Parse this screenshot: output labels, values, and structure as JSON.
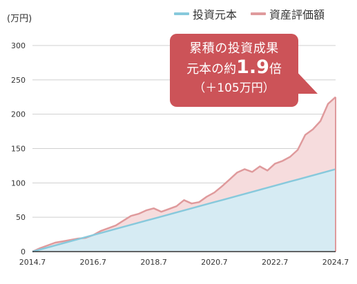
{
  "chart_data": {
    "type": "area",
    "unit_label": "(万円)",
    "x": [
      "2014.7",
      "2014.10",
      "2015.1",
      "2015.4",
      "2015.7",
      "2015.10",
      "2016.1",
      "2016.4",
      "2016.7",
      "2016.10",
      "2017.1",
      "2017.4",
      "2017.7",
      "2017.10",
      "2018.1",
      "2018.4",
      "2018.7",
      "2018.10",
      "2019.1",
      "2019.4",
      "2019.7",
      "2019.10",
      "2020.1",
      "2020.4",
      "2020.7",
      "2020.10",
      "2021.1",
      "2021.4",
      "2021.7",
      "2021.10",
      "2022.1",
      "2022.4",
      "2022.7",
      "2022.10",
      "2023.1",
      "2023.4",
      "2023.7",
      "2023.10",
      "2024.1",
      "2024.4",
      "2024.7"
    ],
    "xticks": [
      "2014.7",
      "2016.7",
      "2018.7",
      "2020.7",
      "2022.7",
      "2024.7"
    ],
    "ylim": [
      0,
      300
    ],
    "yticks": [
      0,
      50,
      100,
      150,
      200,
      250,
      300
    ],
    "grid": true,
    "legend_position": "top-right",
    "series": [
      {
        "name": "投資元本",
        "color": "#87c9dc",
        "fill": "#d6ebf3",
        "values": [
          0,
          3,
          6,
          9,
          12,
          15,
          18,
          21,
          24,
          27,
          30,
          33,
          36,
          39,
          42,
          45,
          48,
          51,
          54,
          57,
          60,
          63,
          66,
          69,
          72,
          75,
          78,
          81,
          84,
          87,
          90,
          93,
          96,
          99,
          102,
          105,
          108,
          111,
          114,
          117,
          120
        ]
      },
      {
        "name": "資産評価額",
        "color": "#df9a9c",
        "fill": "#f6dcdd",
        "values": [
          0,
          5,
          9,
          13,
          15,
          17,
          19,
          20,
          24,
          30,
          34,
          38,
          45,
          52,
          55,
          60,
          63,
          58,
          62,
          66,
          75,
          70,
          72,
          80,
          86,
          95,
          105,
          115,
          120,
          116,
          124,
          118,
          128,
          132,
          138,
          148,
          170,
          178,
          190,
          215,
          225
        ]
      }
    ],
    "callout": {
      "line1": "累積の投資成果",
      "line2_prefix": "元本の約",
      "line2_value": "1.9",
      "line2_suffix": "倍",
      "line3": "（＋105万円）"
    }
  }
}
